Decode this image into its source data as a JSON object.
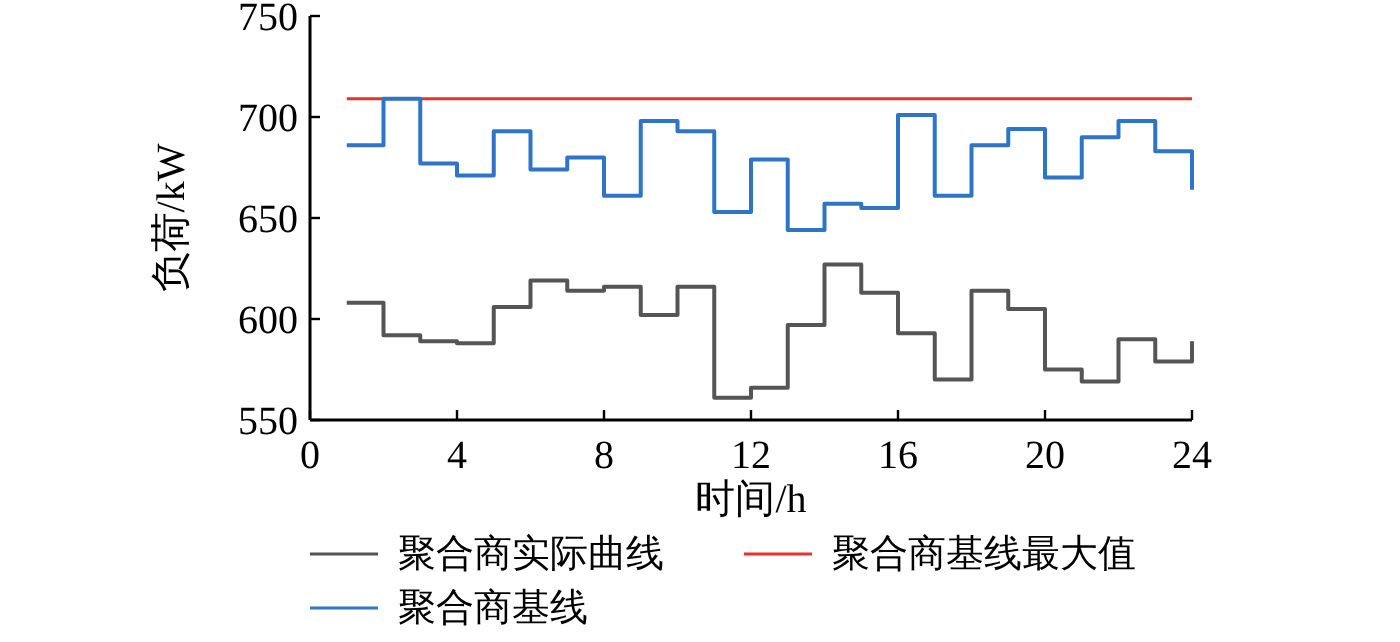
{
  "chart_data": {
    "type": "step",
    "xlabel": "时间/h",
    "ylabel": "负荷/kW",
    "xlim": [
      0,
      24
    ],
    "ylim": [
      550,
      750
    ],
    "xticks": [
      0,
      4,
      8,
      12,
      16,
      20,
      24
    ],
    "yticks": [
      550,
      600,
      650,
      700,
      750
    ],
    "grid": false,
    "legend": "bottom",
    "series": [
      {
        "name": "聚合商实际曲线",
        "color": "#555555",
        "x": [
          1,
          2,
          3,
          4,
          5,
          6,
          7,
          8,
          9,
          10,
          11,
          12,
          13,
          14,
          15,
          16,
          17,
          18,
          19,
          20,
          21,
          22,
          23,
          24
        ],
        "values": [
          608,
          592,
          589,
          588,
          606,
          619,
          614,
          616,
          602,
          616,
          561,
          566,
          597,
          627,
          613,
          593,
          570,
          614,
          605,
          575,
          569,
          590,
          579,
          589
        ]
      },
      {
        "name": "聚合商基线最大值",
        "color": "#e8322d",
        "type": "line",
        "x": [
          1,
          24
        ],
        "values": [
          709,
          709
        ]
      },
      {
        "name": "聚合商基线",
        "color": "#2e75c7",
        "x": [
          1,
          2,
          3,
          4,
          5,
          6,
          7,
          8,
          9,
          10,
          11,
          12,
          13,
          14,
          15,
          16,
          17,
          18,
          19,
          20,
          21,
          22,
          23,
          24
        ],
        "values": [
          686,
          709,
          677,
          671,
          693,
          674,
          680,
          661,
          698,
          693,
          653,
          679,
          644,
          657,
          655,
          701,
          661,
          686,
          694,
          670,
          690,
          698,
          683,
          664
        ]
      }
    ]
  }
}
